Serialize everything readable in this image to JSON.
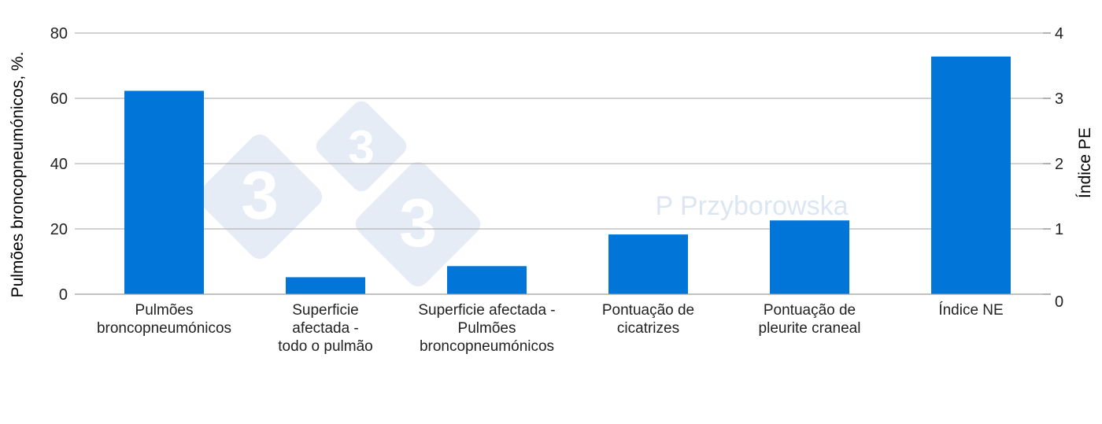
{
  "chart_data": {
    "type": "bar",
    "categories": [
      [
        "Pulmões",
        "broncopneumónicos"
      ],
      [
        "Superficie",
        "afectada -",
        "todo o pulmão"
      ],
      [
        "Superficie afectada -",
        "Pulmões",
        "broncopneumónicos"
      ],
      [
        "Pontuação de",
        "cicatrizes"
      ],
      [
        "Pontuação de",
        "pleurite craneal"
      ],
      [
        "Índice NE"
      ]
    ],
    "values": [
      62.3,
      5.2,
      8.6,
      18.3,
      22.6,
      72.8
    ],
    "ylabel": "Pulmões broncopneumónicos, %.",
    "y2label": "Índice PE",
    "ylim": [
      0,
      80
    ],
    "y2lim": [
      0,
      4
    ],
    "yticks": [
      "0",
      "20",
      "40",
      "60",
      "80"
    ],
    "y2ticks": [
      "0",
      "1",
      "2",
      "3",
      "4"
    ],
    "grid": true,
    "bar_color": "#0175d8",
    "watermark": {
      "logo_text": [
        "3",
        "3",
        "3"
      ],
      "caption": "P Przyborowska"
    }
  }
}
